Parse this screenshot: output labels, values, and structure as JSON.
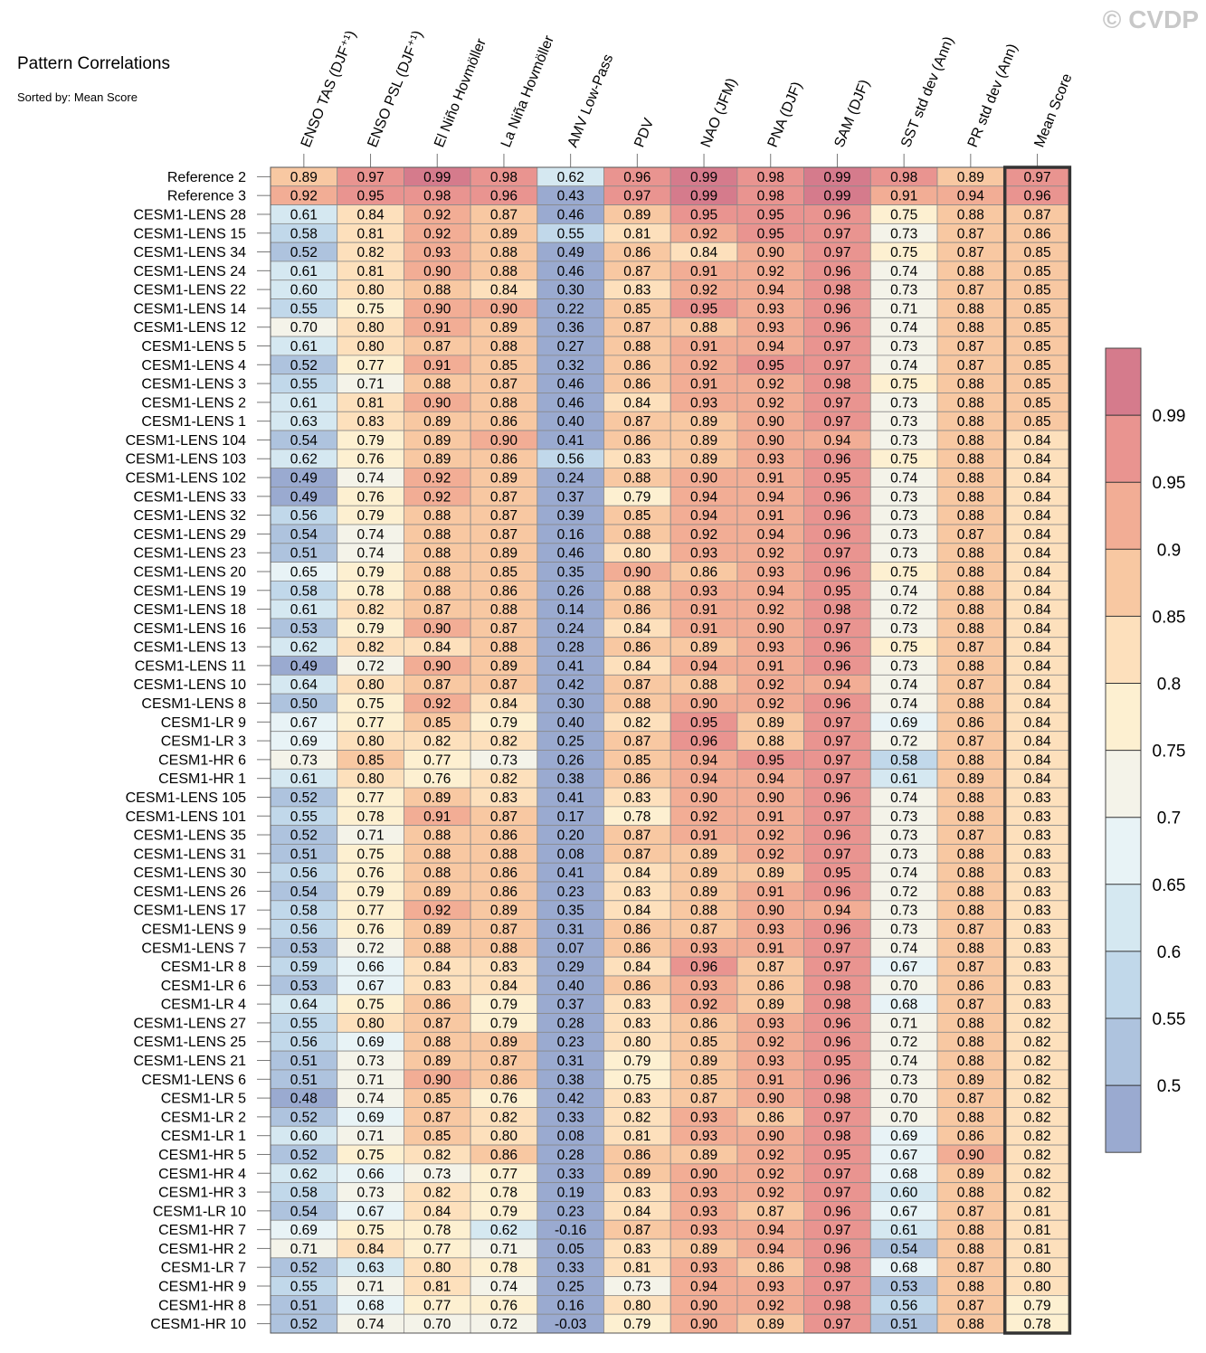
{
  "title": "Pattern Correlations",
  "subtitle": "Sorted by: Mean Score",
  "watermark": "© CVDP",
  "chart_data": {
    "type": "heatmap",
    "title": "Pattern Correlations",
    "subtitle": "Sorted by: Mean Score",
    "columns": [
      "ENSO TAS (DJF⁺¹)",
      "ENSO PSL (DJF⁺¹)",
      "El Niño Hovmöller",
      "La Niña Hovmöller",
      "AMV Low-Pass",
      "PDV",
      "NAO (JFM)",
      "PNA (DJF)",
      "SAM (DJF)",
      "SST std dev (Ann)",
      "PR std dev (Ann)",
      "Mean Score"
    ],
    "rows": [
      "Reference 2",
      "Reference 3",
      "CESM1-LENS 28",
      "CESM1-LENS 15",
      "CESM1-LENS 34",
      "CESM1-LENS 24",
      "CESM1-LENS 22",
      "CESM1-LENS 14",
      "CESM1-LENS 12",
      "CESM1-LENS 5",
      "CESM1-LENS 4",
      "CESM1-LENS 3",
      "CESM1-LENS 2",
      "CESM1-LENS 1",
      "CESM1-LENS 104",
      "CESM1-LENS 103",
      "CESM1-LENS 102",
      "CESM1-LENS 33",
      "CESM1-LENS 32",
      "CESM1-LENS 29",
      "CESM1-LENS 23",
      "CESM1-LENS 20",
      "CESM1-LENS 19",
      "CESM1-LENS 18",
      "CESM1-LENS 16",
      "CESM1-LENS 13",
      "CESM1-LENS 11",
      "CESM1-LENS 10",
      "CESM1-LENS 8",
      "CESM1-LR 9",
      "CESM1-LR 3",
      "CESM1-HR 6",
      "CESM1-HR 1",
      "CESM1-LENS 105",
      "CESM1-LENS 101",
      "CESM1-LENS 35",
      "CESM1-LENS 31",
      "CESM1-LENS 30",
      "CESM1-LENS 26",
      "CESM1-LENS 17",
      "CESM1-LENS 9",
      "CESM1-LENS 7",
      "CESM1-LR 8",
      "CESM1-LR 6",
      "CESM1-LR 4",
      "CESM1-LENS 27",
      "CESM1-LENS 25",
      "CESM1-LENS 21",
      "CESM1-LENS 6",
      "CESM1-LR 5",
      "CESM1-LR 2",
      "CESM1-LR 1",
      "CESM1-HR 5",
      "CESM1-HR 4",
      "CESM1-HR 3",
      "CESM1-LR 10",
      "CESM1-HR 7",
      "CESM1-HR 2",
      "CESM1-LR 7",
      "CESM1-HR 9",
      "CESM1-HR 8",
      "CESM1-HR 10"
    ],
    "values": [
      [
        0.89,
        0.97,
        0.99,
        0.98,
        0.62,
        0.96,
        0.99,
        0.98,
        0.99,
        0.98,
        0.89,
        0.97
      ],
      [
        0.92,
        0.95,
        0.98,
        0.96,
        0.43,
        0.97,
        0.99,
        0.98,
        0.99,
        0.91,
        0.94,
        0.96
      ],
      [
        0.61,
        0.84,
        0.92,
        0.87,
        0.46,
        0.89,
        0.95,
        0.95,
        0.96,
        0.75,
        0.88,
        0.87
      ],
      [
        0.58,
        0.81,
        0.92,
        0.89,
        0.55,
        0.81,
        0.92,
        0.95,
        0.97,
        0.73,
        0.87,
        0.86
      ],
      [
        0.52,
        0.82,
        0.93,
        0.88,
        0.49,
        0.86,
        0.84,
        0.9,
        0.97,
        0.75,
        0.87,
        0.85
      ],
      [
        0.61,
        0.81,
        0.9,
        0.88,
        0.46,
        0.87,
        0.91,
        0.92,
        0.96,
        0.74,
        0.88,
        0.85
      ],
      [
        0.6,
        0.8,
        0.88,
        0.84,
        0.3,
        0.83,
        0.92,
        0.94,
        0.98,
        0.73,
        0.87,
        0.85
      ],
      [
        0.55,
        0.75,
        0.9,
        0.9,
        0.22,
        0.85,
        0.95,
        0.93,
        0.96,
        0.71,
        0.88,
        0.85
      ],
      [
        0.7,
        0.8,
        0.91,
        0.89,
        0.36,
        0.87,
        0.88,
        0.93,
        0.96,
        0.74,
        0.88,
        0.85
      ],
      [
        0.61,
        0.8,
        0.87,
        0.88,
        0.27,
        0.88,
        0.91,
        0.94,
        0.97,
        0.73,
        0.87,
        0.85
      ],
      [
        0.52,
        0.77,
        0.91,
        0.85,
        0.32,
        0.86,
        0.92,
        0.95,
        0.97,
        0.74,
        0.87,
        0.85
      ],
      [
        0.55,
        0.71,
        0.88,
        0.87,
        0.46,
        0.86,
        0.91,
        0.92,
        0.98,
        0.75,
        0.88,
        0.85
      ],
      [
        0.61,
        0.81,
        0.9,
        0.88,
        0.46,
        0.84,
        0.93,
        0.92,
        0.97,
        0.73,
        0.88,
        0.85
      ],
      [
        0.63,
        0.83,
        0.89,
        0.86,
        0.4,
        0.87,
        0.89,
        0.9,
        0.97,
        0.73,
        0.88,
        0.85
      ],
      [
        0.54,
        0.79,
        0.89,
        0.9,
        0.41,
        0.86,
        0.89,
        0.9,
        0.94,
        0.73,
        0.88,
        0.84
      ],
      [
        0.62,
        0.76,
        0.89,
        0.86,
        0.56,
        0.83,
        0.89,
        0.93,
        0.96,
        0.75,
        0.88,
        0.84
      ],
      [
        0.49,
        0.74,
        0.92,
        0.89,
        0.24,
        0.88,
        0.9,
        0.91,
        0.95,
        0.74,
        0.88,
        0.84
      ],
      [
        0.49,
        0.76,
        0.92,
        0.87,
        0.37,
        0.79,
        0.94,
        0.94,
        0.96,
        0.73,
        0.88,
        0.84
      ],
      [
        0.56,
        0.79,
        0.88,
        0.87,
        0.39,
        0.85,
        0.94,
        0.91,
        0.96,
        0.73,
        0.88,
        0.84
      ],
      [
        0.54,
        0.74,
        0.88,
        0.87,
        0.16,
        0.88,
        0.92,
        0.94,
        0.96,
        0.73,
        0.87,
        0.84
      ],
      [
        0.51,
        0.74,
        0.88,
        0.89,
        0.46,
        0.8,
        0.93,
        0.92,
        0.97,
        0.73,
        0.88,
        0.84
      ],
      [
        0.65,
        0.79,
        0.88,
        0.85,
        0.35,
        0.9,
        0.86,
        0.93,
        0.96,
        0.75,
        0.88,
        0.84
      ],
      [
        0.58,
        0.78,
        0.88,
        0.86,
        0.26,
        0.88,
        0.93,
        0.94,
        0.95,
        0.74,
        0.88,
        0.84
      ],
      [
        0.61,
        0.82,
        0.87,
        0.88,
        0.14,
        0.86,
        0.91,
        0.92,
        0.98,
        0.72,
        0.88,
        0.84
      ],
      [
        0.53,
        0.79,
        0.9,
        0.87,
        0.24,
        0.84,
        0.91,
        0.9,
        0.97,
        0.73,
        0.88,
        0.84
      ],
      [
        0.62,
        0.82,
        0.84,
        0.88,
        0.28,
        0.86,
        0.89,
        0.93,
        0.96,
        0.75,
        0.87,
        0.84
      ],
      [
        0.49,
        0.72,
        0.9,
        0.89,
        0.41,
        0.84,
        0.94,
        0.91,
        0.96,
        0.73,
        0.88,
        0.84
      ],
      [
        0.64,
        0.8,
        0.87,
        0.87,
        0.42,
        0.87,
        0.88,
        0.92,
        0.94,
        0.74,
        0.87,
        0.84
      ],
      [
        0.5,
        0.75,
        0.92,
        0.84,
        0.3,
        0.88,
        0.9,
        0.92,
        0.96,
        0.74,
        0.88,
        0.84
      ],
      [
        0.67,
        0.77,
        0.85,
        0.79,
        0.4,
        0.82,
        0.95,
        0.89,
        0.97,
        0.69,
        0.86,
        0.84
      ],
      [
        0.69,
        0.8,
        0.82,
        0.82,
        0.25,
        0.87,
        0.96,
        0.88,
        0.97,
        0.72,
        0.87,
        0.84
      ],
      [
        0.73,
        0.85,
        0.77,
        0.73,
        0.26,
        0.85,
        0.94,
        0.95,
        0.97,
        0.58,
        0.88,
        0.84
      ],
      [
        0.61,
        0.8,
        0.76,
        0.82,
        0.38,
        0.86,
        0.94,
        0.94,
        0.97,
        0.61,
        0.89,
        0.84
      ],
      [
        0.52,
        0.77,
        0.89,
        0.83,
        0.41,
        0.83,
        0.9,
        0.9,
        0.96,
        0.74,
        0.88,
        0.83
      ],
      [
        0.55,
        0.78,
        0.91,
        0.87,
        0.17,
        0.78,
        0.92,
        0.91,
        0.97,
        0.73,
        0.88,
        0.83
      ],
      [
        0.52,
        0.71,
        0.88,
        0.86,
        0.2,
        0.87,
        0.91,
        0.92,
        0.96,
        0.73,
        0.87,
        0.83
      ],
      [
        0.51,
        0.75,
        0.88,
        0.88,
        0.08,
        0.87,
        0.89,
        0.92,
        0.97,
        0.73,
        0.88,
        0.83
      ],
      [
        0.56,
        0.76,
        0.88,
        0.86,
        0.41,
        0.84,
        0.89,
        0.89,
        0.95,
        0.74,
        0.88,
        0.83
      ],
      [
        0.54,
        0.79,
        0.89,
        0.86,
        0.23,
        0.83,
        0.89,
        0.91,
        0.96,
        0.72,
        0.88,
        0.83
      ],
      [
        0.58,
        0.77,
        0.92,
        0.89,
        0.35,
        0.84,
        0.88,
        0.9,
        0.94,
        0.73,
        0.88,
        0.83
      ],
      [
        0.56,
        0.76,
        0.89,
        0.87,
        0.31,
        0.86,
        0.87,
        0.93,
        0.96,
        0.73,
        0.87,
        0.83
      ],
      [
        0.53,
        0.72,
        0.88,
        0.88,
        0.07,
        0.86,
        0.93,
        0.91,
        0.97,
        0.74,
        0.88,
        0.83
      ],
      [
        0.59,
        0.66,
        0.84,
        0.83,
        0.29,
        0.84,
        0.96,
        0.87,
        0.97,
        0.67,
        0.87,
        0.83
      ],
      [
        0.53,
        0.67,
        0.83,
        0.84,
        0.4,
        0.86,
        0.93,
        0.86,
        0.98,
        0.7,
        0.86,
        0.83
      ],
      [
        0.64,
        0.75,
        0.86,
        0.79,
        0.37,
        0.83,
        0.92,
        0.89,
        0.98,
        0.68,
        0.87,
        0.83
      ],
      [
        0.55,
        0.8,
        0.87,
        0.79,
        0.28,
        0.83,
        0.86,
        0.93,
        0.96,
        0.71,
        0.88,
        0.82
      ],
      [
        0.56,
        0.69,
        0.88,
        0.89,
        0.23,
        0.8,
        0.85,
        0.92,
        0.96,
        0.72,
        0.88,
        0.82
      ],
      [
        0.51,
        0.73,
        0.89,
        0.87,
        0.31,
        0.79,
        0.89,
        0.93,
        0.95,
        0.74,
        0.88,
        0.82
      ],
      [
        0.51,
        0.71,
        0.9,
        0.86,
        0.38,
        0.75,
        0.85,
        0.91,
        0.96,
        0.73,
        0.89,
        0.82
      ],
      [
        0.48,
        0.74,
        0.85,
        0.76,
        0.42,
        0.83,
        0.87,
        0.9,
        0.98,
        0.7,
        0.87,
        0.82
      ],
      [
        0.52,
        0.69,
        0.87,
        0.82,
        0.33,
        0.82,
        0.93,
        0.86,
        0.97,
        0.7,
        0.88,
        0.82
      ],
      [
        0.6,
        0.71,
        0.85,
        0.8,
        0.08,
        0.81,
        0.93,
        0.9,
        0.98,
        0.69,
        0.86,
        0.82
      ],
      [
        0.52,
        0.75,
        0.82,
        0.86,
        0.28,
        0.86,
        0.89,
        0.92,
        0.95,
        0.67,
        0.9,
        0.82
      ],
      [
        0.62,
        0.66,
        0.73,
        0.77,
        0.33,
        0.89,
        0.9,
        0.92,
        0.97,
        0.68,
        0.89,
        0.82
      ],
      [
        0.58,
        0.73,
        0.82,
        0.78,
        0.19,
        0.83,
        0.93,
        0.92,
        0.97,
        0.6,
        0.88,
        0.82
      ],
      [
        0.54,
        0.67,
        0.84,
        0.79,
        0.23,
        0.84,
        0.93,
        0.87,
        0.96,
        0.67,
        0.87,
        0.81
      ],
      [
        0.69,
        0.75,
        0.78,
        0.62,
        -0.16,
        0.87,
        0.93,
        0.94,
        0.97,
        0.61,
        0.88,
        0.81
      ],
      [
        0.71,
        0.84,
        0.77,
        0.71,
        0.05,
        0.83,
        0.89,
        0.94,
        0.96,
        0.54,
        0.88,
        0.81
      ],
      [
        0.52,
        0.63,
        0.8,
        0.78,
        0.33,
        0.81,
        0.93,
        0.86,
        0.98,
        0.68,
        0.87,
        0.8
      ],
      [
        0.55,
        0.71,
        0.81,
        0.74,
        0.25,
        0.73,
        0.94,
        0.93,
        0.97,
        0.53,
        0.88,
        0.8
      ],
      [
        0.51,
        0.68,
        0.77,
        0.76,
        0.16,
        0.8,
        0.9,
        0.92,
        0.98,
        0.56,
        0.87,
        0.79
      ],
      [
        0.52,
        0.74,
        0.7,
        0.72,
        -0.03,
        0.79,
        0.9,
        0.89,
        0.97,
        0.51,
        0.88,
        0.78
      ]
    ],
    "colorbar": {
      "levels": [
        "0.5",
        "0.55",
        "0.6",
        "0.65",
        "0.7",
        "0.75",
        "0.8",
        "0.85",
        "0.9",
        "0.95",
        "0.99"
      ],
      "colors": [
        "#9aaad0",
        "#aec3de",
        "#c1d8ea",
        "#d5e8f1",
        "#e8f3f6",
        "#f4f3e9",
        "#fdf0d1",
        "#fde0bc",
        "#f8c8a2",
        "#f2ad95",
        "#e99490",
        "#d57b8c"
      ]
    },
    "highlight_column": "Mean Score"
  }
}
